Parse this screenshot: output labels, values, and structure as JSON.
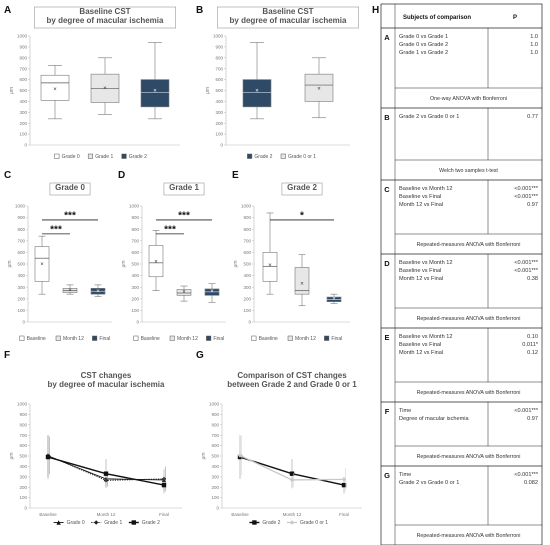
{
  "panel_letters": [
    "A",
    "B",
    "C",
    "D",
    "E",
    "F",
    "G",
    "H"
  ],
  "chart_data": [
    {
      "id": "A",
      "type": "box",
      "title_lines": [
        "Baseline CST",
        "by degree of macular ischemia"
      ],
      "ylabel": "μm",
      "ylim": [
        0,
        1000
      ],
      "yticks": [
        "0",
        "100",
        "200",
        "300",
        "400",
        "500",
        "600",
        "700",
        "800",
        "900",
        "1000"
      ],
      "legend": [
        {
          "label": "Grade 0",
          "color": "#ffffff"
        },
        {
          "label": "Grade 1",
          "color": "#e7e7e7"
        },
        {
          "label": "Grade 2",
          "color": "#2e4a66"
        }
      ],
      "series": [
        {
          "name": "Grade 0",
          "color": "#ffffff",
          "min": 240,
          "q1": 410,
          "median": 570,
          "q3": 640,
          "max": 730,
          "mean": 510
        },
        {
          "name": "Grade 1",
          "color": "#e7e7e7",
          "min": 280,
          "q1": 390,
          "median": 520,
          "q3": 650,
          "max": 800,
          "mean": 520
        },
        {
          "name": "Grade 2",
          "color": "#2e4a66",
          "min": 240,
          "q1": 350,
          "median": 480,
          "q3": 600,
          "max": 940,
          "mean": 500
        }
      ]
    },
    {
      "id": "B",
      "type": "box",
      "title_lines": [
        "Baseline CST",
        "by degree of macular ischemia"
      ],
      "ylabel": "μm",
      "ylim": [
        0,
        1000
      ],
      "yticks": [
        "0",
        "100",
        "200",
        "300",
        "400",
        "500",
        "600",
        "700",
        "800",
        "900",
        "1000"
      ],
      "legend": [
        {
          "label": "Grade 2",
          "color": "#2e4a66"
        },
        {
          "label": "Grade 0 or 1",
          "color": "#e7e7e7"
        }
      ],
      "series": [
        {
          "name": "Grade 2",
          "color": "#2e4a66",
          "min": 240,
          "q1": 350,
          "median": 480,
          "q3": 600,
          "max": 940,
          "mean": 500
        },
        {
          "name": "Grade 0 or 1",
          "color": "#e7e7e7",
          "min": 250,
          "q1": 400,
          "median": 550,
          "q3": 650,
          "max": 800,
          "mean": 515
        }
      ]
    },
    {
      "id": "C",
      "type": "box",
      "title_lines": [
        "Grade 0"
      ],
      "ylabel": "μm",
      "ylim": [
        0,
        1000
      ],
      "yticks": [
        "0",
        "100",
        "200",
        "300",
        "400",
        "500",
        "600",
        "700",
        "800",
        "900",
        "1000"
      ],
      "legend": [
        {
          "label": "Baseline",
          "color": "#ffffff"
        },
        {
          "label": "Month 12",
          "color": "#e7e7e7"
        },
        {
          "label": "Final",
          "color": "#2e4a66"
        }
      ],
      "series": [
        {
          "name": "Baseline",
          "color": "#ffffff",
          "min": 240,
          "q1": 350,
          "median": 550,
          "q3": 650,
          "max": 740,
          "mean": 500
        },
        {
          "name": "Month 12",
          "color": "#e7e7e7",
          "min": 240,
          "q1": 255,
          "median": 270,
          "q3": 290,
          "max": 320,
          "mean": 275
        },
        {
          "name": "Final",
          "color": "#2e4a66",
          "min": 220,
          "q1": 240,
          "median": 265,
          "q3": 290,
          "max": 320,
          "mean": 265
        }
      ],
      "significance": [
        {
          "label": "***",
          "from": 0,
          "to": 1,
          "y": 760
        },
        {
          "label": "***",
          "from": 0,
          "to": 2,
          "y": 880
        }
      ]
    },
    {
      "id": "D",
      "type": "box",
      "title_lines": [
        "Grade 1"
      ],
      "ylabel": "μm",
      "ylim": [
        0,
        1000
      ],
      "yticks": [
        "0",
        "100",
        "200",
        "300",
        "400",
        "500",
        "600",
        "700",
        "800",
        "900",
        "1000"
      ],
      "legend": [
        {
          "label": "Baseline",
          "color": "#ffffff"
        },
        {
          "label": "Month 12",
          "color": "#e7e7e7"
        },
        {
          "label": "Final",
          "color": "#2e4a66"
        }
      ],
      "series": [
        {
          "name": "Baseline",
          "color": "#ffffff",
          "min": 270,
          "q1": 390,
          "median": 510,
          "q3": 660,
          "max": 790,
          "mean": 520
        },
        {
          "name": "Month 12",
          "color": "#e7e7e7",
          "min": 180,
          "q1": 230,
          "median": 250,
          "q3": 280,
          "max": 310,
          "mean": 260
        },
        {
          "name": "Final",
          "color": "#2e4a66",
          "min": 170,
          "q1": 230,
          "median": 260,
          "q3": 285,
          "max": 330,
          "mean": 265
        }
      ],
      "significance": [
        {
          "label": "***",
          "from": 0,
          "to": 1,
          "y": 760
        },
        {
          "label": "***",
          "from": 0,
          "to": 2,
          "y": 880
        }
      ]
    },
    {
      "id": "E",
      "type": "box",
      "title_lines": [
        "Grade 2"
      ],
      "ylabel": "μm",
      "ylim": [
        0,
        1000
      ],
      "yticks": [
        "0",
        "100",
        "200",
        "300",
        "400",
        "500",
        "600",
        "700",
        "800",
        "900",
        "1000"
      ],
      "legend": [
        {
          "label": "Baseline",
          "color": "#ffffff"
        },
        {
          "label": "Month 12",
          "color": "#e7e7e7"
        },
        {
          "label": "Final",
          "color": "#2e4a66"
        }
      ],
      "series": [
        {
          "name": "Baseline",
          "color": "#ffffff",
          "min": 240,
          "q1": 350,
          "median": 480,
          "q3": 600,
          "max": 940,
          "mean": 490
        },
        {
          "name": "Month 12",
          "color": "#e7e7e7",
          "min": 140,
          "q1": 240,
          "median": 270,
          "q3": 470,
          "max": 580,
          "mean": 330
        },
        {
          "name": "Final",
          "color": "#2e4a66",
          "min": 160,
          "q1": 175,
          "median": 195,
          "q3": 215,
          "max": 240,
          "mean": 200
        }
      ],
      "significance": [
        {
          "label": "*",
          "from": 0,
          "to": 2,
          "y": 880
        }
      ]
    },
    {
      "id": "F",
      "type": "line",
      "title_lines": [
        "CST changes",
        "by degree of macular ischemia"
      ],
      "ylabel": "μm",
      "ylim": [
        0,
        1000
      ],
      "yticks": [
        "0",
        "100",
        "200",
        "300",
        "400",
        "500",
        "600",
        "700",
        "800",
        "900",
        "1000"
      ],
      "categories": [
        "Baseline",
        "Month 12",
        "Final"
      ],
      "series": [
        {
          "name": "Grade 0",
          "style": "solid",
          "marker": "triangle",
          "values": [
            500,
            280,
            270
          ],
          "err": [
            200,
            70,
            100
          ]
        },
        {
          "name": "Grade 1",
          "style": "dotted",
          "marker": "diamond",
          "values": [
            505,
            265,
            280
          ],
          "err": [
            180,
            60,
            120
          ]
        },
        {
          "name": "Grade 2",
          "style": "solid-thick",
          "marker": "square",
          "values": [
            490,
            330,
            220
          ],
          "err": [
            210,
            140,
            80
          ]
        }
      ]
    },
    {
      "id": "G",
      "type": "line",
      "title_lines": [
        "Comparison of CST changes",
        "between Grade 2 and Grade 0 or 1"
      ],
      "ylabel": "μm",
      "ylim": [
        0,
        1000
      ],
      "yticks": [
        "0",
        "100",
        "200",
        "300",
        "400",
        "500",
        "600",
        "700",
        "800",
        "900",
        "1000"
      ],
      "categories": [
        "Baseline",
        "Month 12",
        "Final"
      ],
      "series": [
        {
          "name": "Grade 2",
          "style": "solid-thick",
          "marker": "square",
          "values": [
            490,
            330,
            220
          ],
          "err": [
            210,
            140,
            80
          ]
        },
        {
          "name": "Grade 0 or 1",
          "style": "light",
          "marker": "diamond",
          "values": [
            505,
            270,
            275
          ],
          "err": [
            190,
            65,
            110
          ]
        }
      ]
    }
  ],
  "table": {
    "header": [
      "Subjects of comparison",
      "P"
    ],
    "rows": [
      {
        "letter": "A",
        "items": [
          [
            "Grade 0 vs Grade 1",
            "1.0"
          ],
          [
            "Grade 0 vs Grade 2",
            "1.0"
          ],
          [
            "Grade 1 vs Grade 2",
            "1.0"
          ]
        ],
        "method": "One-way ANOVA with Bonferroni"
      },
      {
        "letter": "B",
        "items": [
          [
            "Grade 2 vs Grade 0 or 1",
            "0.77"
          ]
        ],
        "method": "Welch two samples t-test"
      },
      {
        "letter": "C",
        "items": [
          [
            "Baseline vs Month 12",
            "<0.001***"
          ],
          [
            "Baseline vs Final",
            "<0.001***"
          ],
          [
            "Month 12 vs Final",
            "0.97"
          ]
        ],
        "method": "Repeated-measures ANOVA with Bonferroni"
      },
      {
        "letter": "D",
        "items": [
          [
            "Baseline vs Month 12",
            "<0.001***"
          ],
          [
            "Baseline vs Final",
            "<0.001***"
          ],
          [
            "Month 12 vs Final",
            "0.38"
          ]
        ],
        "method": "Repeated-measures ANOVA with Bonferroni"
      },
      {
        "letter": "E",
        "items": [
          [
            "Baseline vs Month 12",
            "0.10"
          ],
          [
            "Baseline vs Final",
            "0.011*"
          ],
          [
            "Month 12 vs Final",
            "0.12"
          ]
        ],
        "method": "Repeated-measures ANOVA with Bonferroni"
      },
      {
        "letter": "F",
        "items": [
          [
            "Time",
            "<0.001***"
          ],
          [
            "Degree of macular ischemia",
            "0.97"
          ]
        ],
        "method": "Repeated-measures ANOVA with Bonferroni"
      },
      {
        "letter": "G",
        "items": [
          [
            "Time",
            "<0.001***"
          ],
          [
            "Grade 2 vs Grade 0 or 1",
            "0.082"
          ]
        ],
        "method": "Repeated-measures ANOVA with Bonferroni"
      }
    ]
  }
}
